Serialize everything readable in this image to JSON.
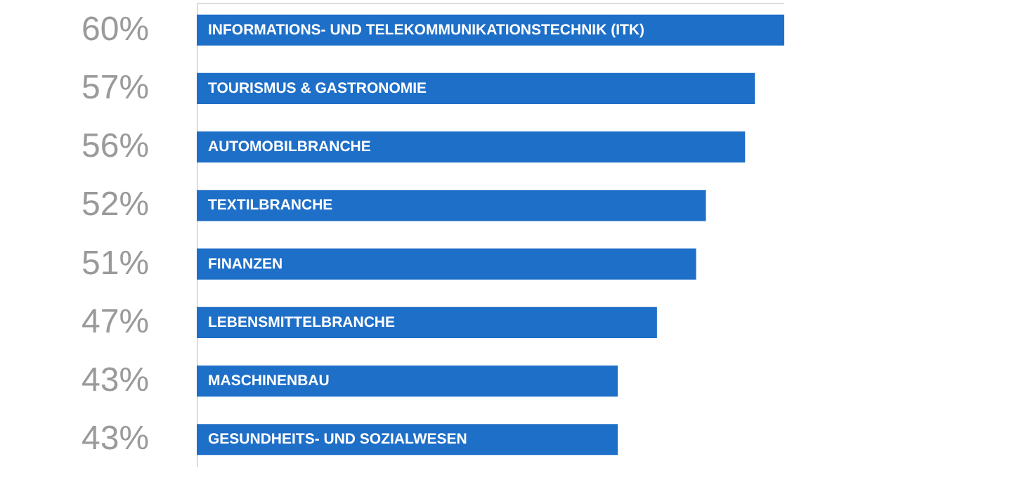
{
  "chart_data": {
    "type": "bar",
    "orientation": "horizontal",
    "categories": [
      "INFORMATIONS- UND TELEKOMMUNIKATIONSTECHNIK (ITK)",
      "TOURISMUS & GASTRONOMIE",
      "AUTOMOBILBRANCHE",
      "TEXTILBRANCHE",
      "FINANZEN",
      "LEBENSMITTELBRANCHE",
      "MASCHINENBAU",
      "GESUNDHEITS- UND SOZIALWESEN"
    ],
    "values": [
      60,
      57,
      56,
      52,
      51,
      47,
      43,
      43
    ],
    "value_labels": [
      "60%",
      "57%",
      "56%",
      "52%",
      "51%",
      "47%",
      "43%",
      "43%"
    ],
    "color": "#1e6fc8"
  }
}
